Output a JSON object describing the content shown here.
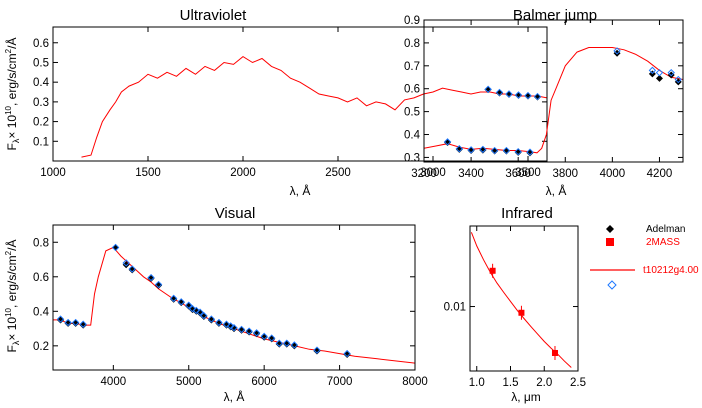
{
  "colors": {
    "model": "#ff0000",
    "adelman": "#000000",
    "twomass": "#ff0000",
    "model_marker": "#1e78ff"
  },
  "legend": {
    "items": [
      {
        "label": "Adelman",
        "symbol": "filled-diamond",
        "color": "#000000"
      },
      {
        "label": "2MASS",
        "symbol": "filled-square",
        "color": "#ff0000"
      },
      {
        "label": "t10212g4.00",
        "symbol": "line",
        "color": "#ff0000"
      },
      {
        "label": "",
        "symbol": "open-diamond",
        "color": "#1e78ff"
      }
    ]
  },
  "chart_data": [
    {
      "type": "line",
      "title": "Ultraviolet",
      "xlabel": "λ, Å",
      "ylabel": "F_λ× 10^10 , erg/s/cm²/Å",
      "xlim": [
        1000,
        3600
      ],
      "ylim": [
        0,
        0.68
      ],
      "xticks": [
        1000,
        1500,
        2000,
        2500,
        3000,
        3500
      ],
      "yticks": [
        0.1,
        0.2,
        0.3,
        0.4,
        0.5,
        0.6
      ],
      "ytick_labels": [
        "0.1",
        "0.2",
        "0.3",
        "0.4",
        "0.5",
        "0.6"
      ],
      "series": [
        {
          "role": "model",
          "x": [
            1150,
            1200,
            1230,
            1260,
            1300,
            1330,
            1360,
            1400,
            1450,
            1500,
            1550,
            1600,
            1650,
            1700,
            1750,
            1800,
            1850,
            1900,
            1950,
            2000,
            2050,
            2100,
            2150,
            2200,
            2250,
            2300,
            2350,
            2400,
            2450,
            2500,
            2550,
            2600,
            2650,
            2700,
            2750,
            2800,
            2850,
            2900,
            2950,
            3000,
            3050,
            3100,
            3150,
            3200,
            3250,
            3300,
            3350,
            3400,
            3450,
            3500,
            3550,
            3600
          ],
          "y": [
            0.02,
            0.03,
            0.12,
            0.2,
            0.26,
            0.3,
            0.35,
            0.38,
            0.4,
            0.44,
            0.42,
            0.45,
            0.43,
            0.47,
            0.44,
            0.48,
            0.46,
            0.5,
            0.49,
            0.53,
            0.5,
            0.52,
            0.48,
            0.46,
            0.42,
            0.4,
            0.37,
            0.34,
            0.33,
            0.32,
            0.3,
            0.32,
            0.28,
            0.3,
            0.29,
            0.26,
            0.31,
            0.32,
            0.34,
            0.35,
            0.37,
            0.36,
            0.35,
            0.34,
            0.35,
            0.35,
            0.34,
            0.34,
            0.33,
            0.33,
            0.33,
            0.32
          ]
        },
        {
          "role": "adelman",
          "x": [
            3290,
            3350,
            3400,
            3450,
            3500,
            3550
          ],
          "y": [
            0.362,
            0.345,
            0.338,
            0.333,
            0.33,
            0.325
          ]
        },
        {
          "role": "model_marker",
          "x": [
            3290,
            3350,
            3400,
            3450,
            3500,
            3550
          ],
          "y": [
            0.364,
            0.348,
            0.34,
            0.335,
            0.332,
            0.327
          ]
        }
      ]
    },
    {
      "type": "line",
      "title": "Balmer jump",
      "xlabel": "λ, Å",
      "ylabel": "",
      "xlim": [
        3200,
        4300
      ],
      "ylim": [
        0.28,
        0.9
      ],
      "xticks": [
        3200,
        3400,
        3600,
        3800,
        4000,
        4200
      ],
      "yticks": [
        0.3,
        0.4,
        0.5,
        0.6,
        0.7,
        0.8,
        0.9
      ],
      "ytick_labels": [
        "0.3",
        "0.4",
        "0.5",
        "0.6",
        "0.7",
        "0.8",
        "0.9"
      ],
      "series": [
        {
          "role": "model",
          "x": [
            3200,
            3250,
            3300,
            3350,
            3400,
            3450,
            3500,
            3550,
            3600,
            3650,
            3680,
            3700,
            3720,
            3740,
            3760,
            3800,
            3850,
            3900,
            3950,
            4000,
            4050,
            4100,
            4150,
            4200,
            4250,
            4300
          ],
          "y": [
            0.34,
            0.35,
            0.36,
            0.345,
            0.335,
            0.34,
            0.335,
            0.33,
            0.33,
            0.325,
            0.32,
            0.34,
            0.4,
            0.55,
            0.6,
            0.7,
            0.76,
            0.78,
            0.78,
            0.78,
            0.77,
            0.75,
            0.72,
            0.68,
            0.65,
            0.64
          ]
        },
        {
          "role": "adelman",
          "x": [
            3300,
            3350,
            3400,
            3450,
            3500,
            3550,
            3600,
            3650,
            4020,
            4170,
            4200,
            4250,
            4280
          ],
          "y": [
            0.365,
            0.335,
            0.33,
            0.332,
            0.328,
            0.328,
            0.322,
            0.32,
            0.755,
            0.665,
            0.645,
            0.66,
            0.63
          ]
        },
        {
          "role": "model_marker",
          "x": [
            3300,
            3350,
            3400,
            3450,
            3500,
            3550,
            3600,
            3650,
            4020,
            4170,
            4200,
            4250,
            4280
          ],
          "y": [
            0.368,
            0.338,
            0.333,
            0.335,
            0.33,
            0.33,
            0.325,
            0.323,
            0.765,
            0.68,
            0.67,
            0.67,
            0.64
          ]
        }
      ]
    },
    {
      "type": "line",
      "title": "Visual",
      "xlabel": "λ, Å",
      "ylabel": "F_λ× 10^10 , erg/s/cm²/Å",
      "xlim": [
        3200,
        8000
      ],
      "ylim": [
        0.06,
        0.9
      ],
      "xticks": [
        4000,
        5000,
        6000,
        7000,
        8000
      ],
      "yticks": [
        0.2,
        0.4,
        0.6,
        0.8
      ],
      "ytick_labels": [
        "0.2",
        "0.4",
        "0.6",
        "0.8"
      ],
      "series": [
        {
          "role": "model",
          "x": [
            3200,
            3300,
            3400,
            3500,
            3600,
            3700,
            3750,
            3800,
            3900,
            4000,
            4100,
            4200,
            4300,
            4400,
            4500,
            4600,
            4700,
            4800,
            4900,
            5000,
            5200,
            5400,
            5600,
            5800,
            6000,
            6200,
            6400,
            6600,
            6800,
            7000,
            7200,
            7500,
            8000
          ],
          "y": [
            0.35,
            0.35,
            0.33,
            0.33,
            0.32,
            0.32,
            0.5,
            0.6,
            0.75,
            0.77,
            0.72,
            0.68,
            0.64,
            0.6,
            0.57,
            0.53,
            0.5,
            0.47,
            0.45,
            0.42,
            0.37,
            0.33,
            0.3,
            0.27,
            0.24,
            0.22,
            0.2,
            0.18,
            0.17,
            0.155,
            0.14,
            0.125,
            0.1
          ]
        },
        {
          "role": "adelman",
          "x": [
            3300,
            3400,
            3500,
            3600,
            4030,
            4170,
            4250,
            4500,
            4600,
            4800,
            4900,
            5000,
            5050,
            5100,
            5150,
            5200,
            5300,
            5400,
            5500,
            5556,
            5600,
            5700,
            5800,
            5900,
            6000,
            6100,
            6200,
            6300,
            6400,
            6700,
            7100
          ],
          "y": [
            0.35,
            0.33,
            0.33,
            0.32,
            0.77,
            0.67,
            0.64,
            0.59,
            0.55,
            0.47,
            0.45,
            0.43,
            0.41,
            0.4,
            0.39,
            0.37,
            0.35,
            0.33,
            0.32,
            0.31,
            0.3,
            0.29,
            0.28,
            0.27,
            0.25,
            0.24,
            0.21,
            0.21,
            0.2,
            0.17,
            0.15
          ]
        },
        {
          "role": "model_marker",
          "x": [
            3300,
            3400,
            3500,
            3600,
            4030,
            4170,
            4250,
            4500,
            4600,
            4800,
            4900,
            5000,
            5050,
            5100,
            5150,
            5200,
            5300,
            5400,
            5500,
            5556,
            5600,
            5700,
            5800,
            5900,
            6000,
            6100,
            6200,
            6300,
            6400,
            6700,
            7100
          ],
          "y": [
            0.355,
            0.335,
            0.335,
            0.325,
            0.77,
            0.68,
            0.645,
            0.595,
            0.555,
            0.475,
            0.455,
            0.435,
            0.415,
            0.405,
            0.395,
            0.375,
            0.355,
            0.335,
            0.325,
            0.315,
            0.305,
            0.295,
            0.285,
            0.275,
            0.255,
            0.245,
            0.215,
            0.215,
            0.205,
            0.175,
            0.155
          ]
        }
      ]
    },
    {
      "type": "line",
      "title": "Infrared",
      "xlabel": "λ, μm",
      "ylabel": "",
      "xlim": [
        0.9,
        2.5
      ],
      "ylim": [
        0.003,
        0.045
      ],
      "yscale": "log",
      "xticks": [
        1.0,
        1.5,
        2.0,
        2.5
      ],
      "yticks": [
        0.01
      ],
      "ytick_labels": [
        "0.01"
      ],
      "series": [
        {
          "role": "model",
          "x": [
            0.92,
            1.0,
            1.1,
            1.2,
            1.3,
            1.4,
            1.5,
            1.6,
            1.7,
            1.8,
            1.9,
            2.0,
            2.1,
            2.2,
            2.3,
            2.4
          ],
          "y": [
            0.04,
            0.031,
            0.024,
            0.019,
            0.0155,
            0.013,
            0.011,
            0.0093,
            0.008,
            0.0069,
            0.006,
            0.0052,
            0.0046,
            0.0041,
            0.0036,
            0.0032
          ]
        },
        {
          "role": "twomass",
          "x": [
            1.235,
            1.662,
            2.159
          ],
          "y": [
            0.0195,
            0.0089,
            0.0042
          ]
        }
      ]
    }
  ]
}
